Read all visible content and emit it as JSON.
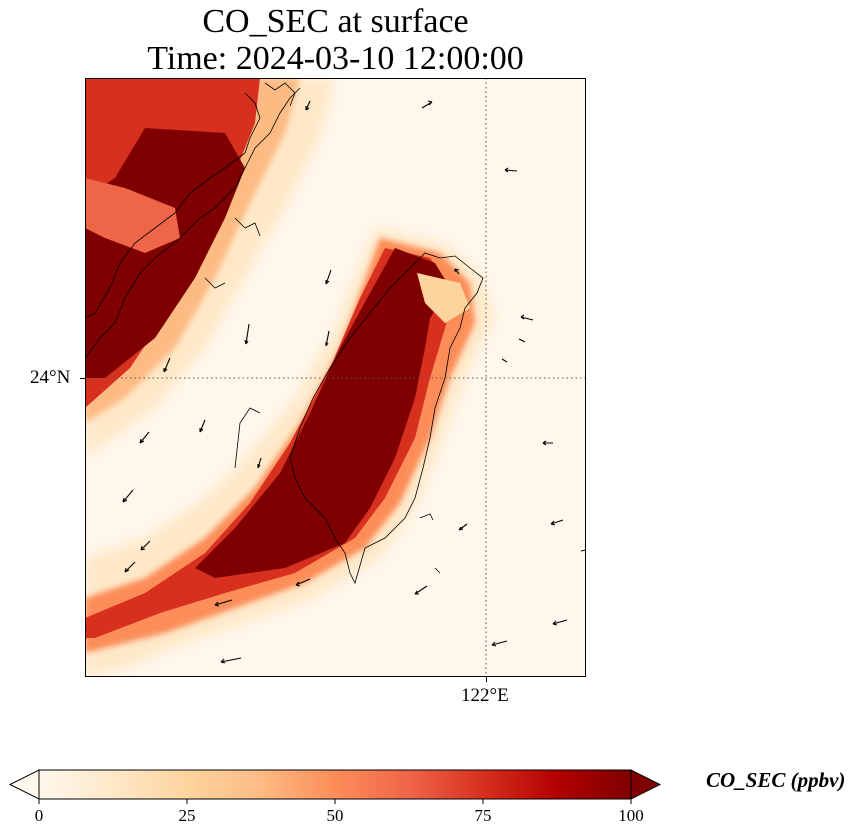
{
  "title": "CO_SEC at surface",
  "subtitle": "Time: 2024-03-10 12:00:00",
  "lat_tick_label": "24°N",
  "lon_tick_label": "122°E",
  "colorbar": {
    "label": "CO_SEC (ppbv)",
    "min": 0,
    "max": 100,
    "ticks": [
      "0",
      "25",
      "50",
      "75",
      "100"
    ],
    "tick_values": [
      0,
      25,
      50,
      75,
      100
    ],
    "extend": "both",
    "cmap": "OrRd",
    "colors": [
      "#fff7ec",
      "#fee8c8",
      "#fdd49e",
      "#fdbb84",
      "#fc8d59",
      "#ef6548",
      "#d7301f",
      "#b30000",
      "#7f0000"
    ]
  },
  "map": {
    "gridlines": "dotted",
    "features": [
      "coastline",
      "wind-vectors",
      "concentration-field"
    ]
  }
}
